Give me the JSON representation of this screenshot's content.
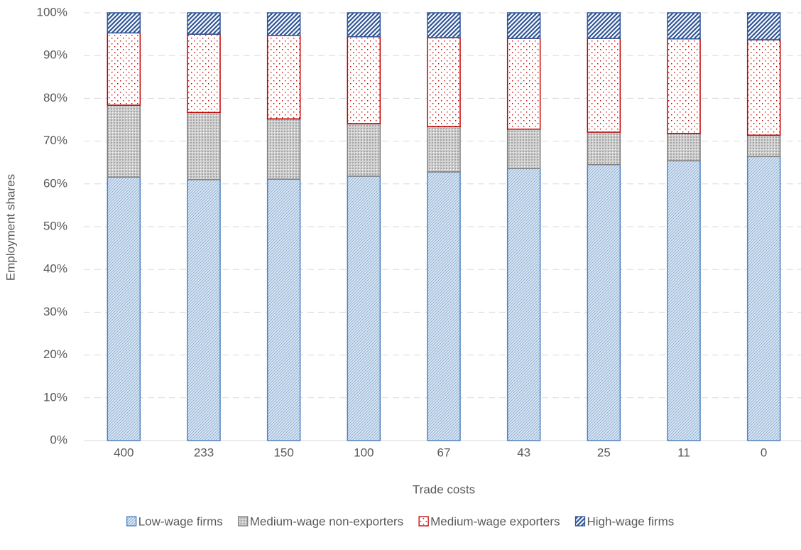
{
  "chart_data": {
    "type": "stacked_bar",
    "x_label": "Trade costs",
    "y_label": "Employment shares",
    "categories": [
      "400",
      "233",
      "150",
      "100",
      "67",
      "43",
      "25",
      "11",
      "0"
    ],
    "series": [
      {
        "name": "Low-wage firms",
        "color": "#4f81bd",
        "values": [
          61.6,
          61.0,
          61.1,
          61.8,
          62.8,
          63.6,
          64.5,
          65.4,
          66.4
        ]
      },
      {
        "name": "Medium-wage non-exporters",
        "color": "#7f7f7f",
        "values": [
          16.8,
          15.7,
          14.1,
          12.3,
          10.6,
          9.2,
          7.6,
          6.4,
          5.0
        ]
      },
      {
        "name": "Medium-wage exporters",
        "color": "#c00000",
        "values": [
          16.9,
          18.3,
          19.5,
          20.3,
          20.8,
          21.2,
          21.9,
          22.1,
          22.3
        ]
      },
      {
        "name": "High-wage firms",
        "color": "#2f5597",
        "values": [
          4.7,
          5.0,
          5.3,
          5.6,
          5.8,
          6.0,
          6.0,
          6.1,
          6.3
        ]
      }
    ],
    "ylim": [
      0,
      100
    ],
    "yticks": [
      {
        "value": 0,
        "label": "0%"
      },
      {
        "value": 10,
        "label": "10%"
      },
      {
        "value": 20,
        "label": "20%"
      },
      {
        "value": 30,
        "label": "30%"
      },
      {
        "value": 40,
        "label": "40%"
      },
      {
        "value": 50,
        "label": "50%"
      },
      {
        "value": 60,
        "label": "60%"
      },
      {
        "value": 70,
        "label": "70%"
      },
      {
        "value": 80,
        "label": "80%"
      },
      {
        "value": 90,
        "label": "90%"
      },
      {
        "value": 100,
        "label": "100%"
      }
    ],
    "grid": true,
    "legend": "bottom"
  }
}
